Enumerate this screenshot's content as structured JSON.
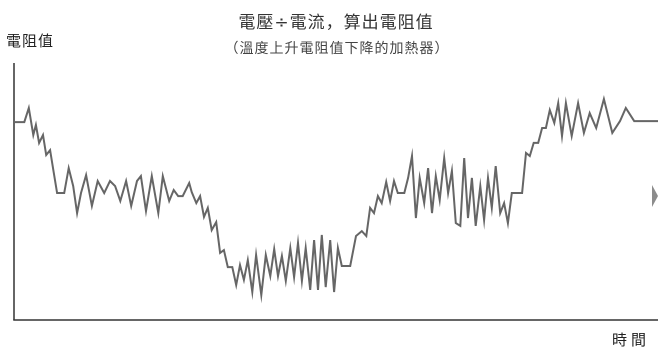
{
  "chart_data": {
    "type": "line",
    "title": "電壓÷電流，算出電阻值",
    "subtitle": "（溫度上升電阻值下降的加熱器）",
    "xlabel": "時間",
    "ylabel": "電阻值",
    "xlim": [
      0,
      100
    ],
    "ylim": [
      0,
      100
    ],
    "grid": false,
    "series": [
      {
        "x": [
          0,
          1.6,
          2.3,
          3.0,
          3.4,
          3.9,
          4.5,
          5.0,
          5.6,
          6.1,
          6.7,
          7.8,
          8.5,
          9.2,
          9.8,
          10.4,
          11.2,
          12.1,
          13.0,
          14.0,
          14.9,
          15.7,
          16.5,
          17.4,
          18.2,
          19.1,
          19.7,
          20.5,
          21.4,
          22.4,
          23.1,
          24.1,
          24.8,
          25.5,
          26.2,
          27.2,
          27.6,
          28.3,
          28.9,
          29.5,
          30.1,
          30.7,
          31.4,
          32.0,
          32.6,
          33.2,
          33.9,
          34.5,
          35.1,
          35.7,
          36.3,
          37.0,
          37.6,
          38.4,
          39.1,
          39.8,
          40.4,
          41.0,
          41.6,
          42.2,
          42.9,
          43.5,
          44.1,
          44.7,
          45.3,
          46.0,
          46.6,
          47.2,
          47.8,
          48.4,
          49.1,
          49.7,
          50.3,
          50.9,
          52.2,
          53.1,
          54.0,
          54.7,
          55.3,
          55.9,
          56.5,
          57.1,
          57.8,
          58.4,
          59.0,
          59.6,
          60.6,
          61.2,
          61.8,
          62.4,
          63.0,
          63.7,
          64.3,
          64.9,
          65.5,
          66.1,
          66.8,
          67.4,
          68.0,
          68.6,
          69.3,
          69.9,
          70.5,
          71.1,
          71.7,
          72.4,
          73.0,
          73.6,
          74.2,
          74.8,
          75.5,
          76.1,
          76.7,
          77.3,
          78.9,
          79.5,
          80.1,
          80.7,
          81.4,
          82.0,
          82.6,
          83.2,
          83.9,
          84.5,
          85.1,
          85.7,
          86.6,
          87.6,
          88.5,
          89.4,
          90.4,
          91.6,
          92.9,
          94.1,
          95.0,
          96.3,
          100
        ],
        "y": [
          77.0,
          77.0,
          82.5,
          72.0,
          75.9,
          68.9,
          72.0,
          64.2,
          66.1,
          58.4,
          49.4,
          49.4,
          59.1,
          52.1,
          41.6,
          49.4,
          56.4,
          44.4,
          54.1,
          49.4,
          54.1,
          52.1,
          46.3,
          54.1,
          44.4,
          54.1,
          56.0,
          42.4,
          56.0,
          41.6,
          56.0,
          46.3,
          50.6,
          48.2,
          48.2,
          53.3,
          49.8,
          45.5,
          48.2,
          40.1,
          43.6,
          35.0,
          38.1,
          26.1,
          27.2,
          20.6,
          20.6,
          13.6,
          21.4,
          15.6,
          23.3,
          10.9,
          25.3,
          9.7,
          25.3,
          17.1,
          27.6,
          17.1,
          24.9,
          15.2,
          28.0,
          16.7,
          30.0,
          15.2,
          28.0,
          11.7,
          31.1,
          11.7,
          33.1,
          12.8,
          31.1,
          10.9,
          28.0,
          21.0,
          21.0,
          32.7,
          34.6,
          32.7,
          43.6,
          41.6,
          48.2,
          45.5,
          53.7,
          46.3,
          54.1,
          49.4,
          49.4,
          55.3,
          63.8,
          39.7,
          55.3,
          45.5,
          59.1,
          41.6,
          56.0,
          46.7,
          63.0,
          49.4,
          58.0,
          37.7,
          36.6,
          63.0,
          39.7,
          55.3,
          36.6,
          52.1,
          38.9,
          55.3,
          43.6,
          59.9,
          41.6,
          45.5,
          37.7,
          49.4,
          49.4,
          65.0,
          63.8,
          68.9,
          68.9,
          74.7,
          74.7,
          81.7,
          76.7,
          84.4,
          71.6,
          84.4,
          71.6,
          84.4,
          72.8,
          80.5,
          74.7,
          86.0,
          72.8,
          77.4,
          82.5,
          77.4,
          77.4
        ]
      }
    ]
  },
  "colors": {
    "line": "#666666",
    "axis": "#333333",
    "icon": "#8c8c8c"
  },
  "controls": {
    "next_icon": "right-triangle-icon"
  }
}
